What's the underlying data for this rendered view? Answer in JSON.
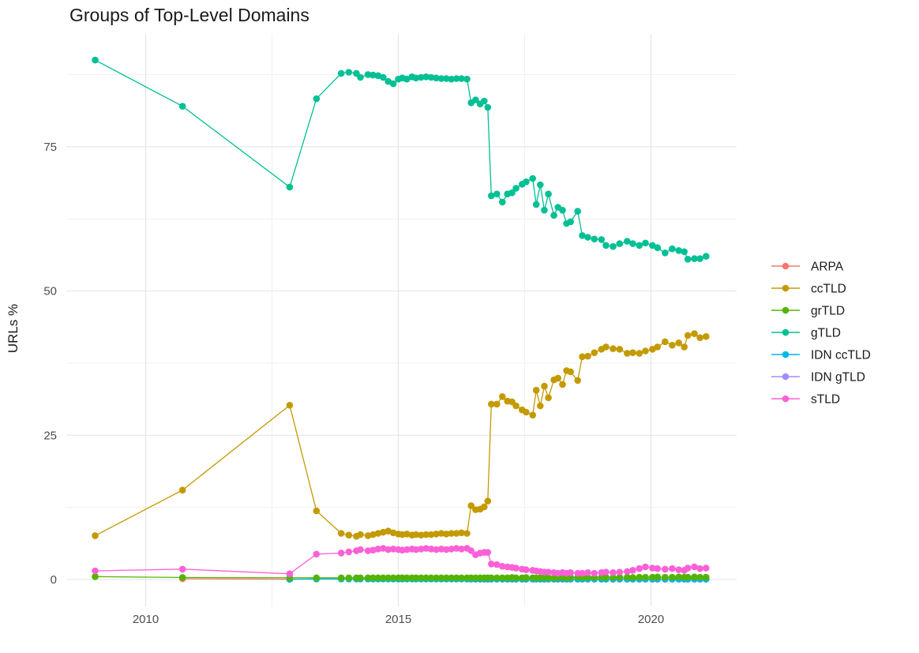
{
  "chart_data": {
    "type": "line",
    "title": "Groups of Top-Level Domains",
    "xlabel": "",
    "ylabel": "URLs %",
    "x_ticks": [
      2010,
      2015,
      2020
    ],
    "x_tick_labels": [
      "2010",
      "2015",
      "2020"
    ],
    "x_minor_ticks": [
      2012.5,
      2017.5
    ],
    "y_ticks": [
      0,
      25,
      50,
      75
    ],
    "y_tick_labels": [
      "0",
      "25",
      "50",
      "75"
    ],
    "y_minor_ticks": [
      12.5,
      37.5,
      62.5,
      87.5
    ],
    "xlim": [
      2008.4,
      2021.7
    ],
    "ylim": [
      -4.5,
      94.5
    ],
    "grid": true,
    "legend_position": "right",
    "grid_major_color": "#e3e3e3",
    "grid_minor_color": "#f0f0f0",
    "draw_order": [
      "ARPA",
      "IDN gTLD",
      "IDN ccTLD",
      "ccTLD",
      "grTLD",
      "gTLD",
      "sTLD"
    ],
    "series": [
      {
        "name": "ARPA",
        "color": "#F8766D",
        "x": [
          2010.73,
          2012.85
        ],
        "y": [
          0.15,
          0.05
        ]
      },
      {
        "name": "ccTLD",
        "color": "#C49A00",
        "x": [
          2009.0,
          2010.73,
          2012.85,
          2013.38,
          2013.87,
          2014.02,
          2014.17,
          2014.25,
          2014.4,
          2014.5,
          2014.6,
          2014.7,
          2014.8,
          2014.9,
          2015.0,
          2015.08,
          2015.17,
          2015.27,
          2015.35,
          2015.45,
          2015.55,
          2015.65,
          2015.75,
          2015.85,
          2015.95,
          2016.05,
          2016.15,
          2016.25,
          2016.36,
          2016.44,
          2016.53,
          2016.62,
          2016.7,
          2016.77,
          2016.84,
          2016.95,
          2017.06,
          2017.16,
          2017.25,
          2017.33,
          2017.45,
          2017.53,
          2017.66,
          2017.73,
          2017.81,
          2017.89,
          2017.97,
          2018.08,
          2018.16,
          2018.25,
          2018.33,
          2018.41,
          2018.55,
          2018.64,
          2018.75,
          2018.88,
          2019.02,
          2019.11,
          2019.25,
          2019.38,
          2019.53,
          2019.64,
          2019.77,
          2019.89,
          2020.03,
          2020.13,
          2020.28,
          2020.42,
          2020.55,
          2020.66,
          2020.73,
          2020.86,
          2020.97,
          2021.09
        ],
        "y": [
          7.6,
          15.5,
          30.2,
          11.9,
          8.0,
          7.7,
          7.5,
          7.8,
          7.6,
          7.8,
          8.0,
          8.2,
          8.4,
          8.1,
          7.9,
          7.8,
          7.9,
          7.7,
          7.8,
          7.7,
          7.8,
          7.8,
          7.9,
          8.0,
          7.9,
          8.0,
          8.0,
          8.1,
          8.0,
          12.8,
          12.1,
          12.2,
          12.6,
          13.6,
          30.4,
          30.4,
          31.7,
          30.9,
          30.8,
          30.1,
          29.4,
          29.0,
          28.5,
          32.8,
          30.1,
          33.5,
          31.5,
          34.6,
          34.9,
          33.8,
          36.2,
          36.0,
          34.5,
          38.6,
          38.7,
          39.3,
          39.9,
          40.3,
          40.0,
          39.9,
          39.2,
          39.3,
          39.2,
          39.6,
          39.9,
          40.3,
          41.2,
          40.6,
          41.0,
          40.3,
          42.3,
          42.6,
          41.9,
          42.1
        ]
      },
      {
        "name": "grTLD",
        "color": "#53B400",
        "x": [
          2009.0,
          2010.73,
          2012.85,
          2013.38,
          2013.87,
          2014.02,
          2014.17,
          2014.25,
          2014.4,
          2014.5,
          2014.6,
          2014.7,
          2014.8,
          2014.9,
          2015.0,
          2015.08,
          2015.17,
          2015.27,
          2015.35,
          2015.45,
          2015.55,
          2015.65,
          2015.75,
          2015.85,
          2015.95,
          2016.05,
          2016.15,
          2016.25,
          2016.36,
          2016.44,
          2016.53,
          2016.62,
          2016.7,
          2016.77,
          2016.84,
          2016.95,
          2017.06,
          2017.16,
          2017.25,
          2017.33,
          2017.45,
          2017.53,
          2017.66,
          2017.73,
          2017.81,
          2017.89,
          2017.97,
          2018.08,
          2018.16,
          2018.25,
          2018.33,
          2018.41,
          2018.55,
          2018.64,
          2018.75,
          2018.88,
          2019.02,
          2019.11,
          2019.25,
          2019.38,
          2019.53,
          2019.64,
          2019.77,
          2019.89,
          2020.03,
          2020.13,
          2020.28,
          2020.42,
          2020.55,
          2020.66,
          2020.73,
          2020.86,
          2020.97,
          2021.09
        ],
        "y": [
          0.5,
          0.35,
          0.3,
          0.3,
          0.3,
          0.3,
          0.3,
          0.3,
          0.3,
          0.3,
          0.3,
          0.3,
          0.3,
          0.3,
          0.3,
          0.3,
          0.3,
          0.3,
          0.3,
          0.3,
          0.3,
          0.3,
          0.3,
          0.3,
          0.3,
          0.3,
          0.3,
          0.3,
          0.3,
          0.3,
          0.3,
          0.3,
          0.3,
          0.3,
          0.3,
          0.3,
          0.3,
          0.3,
          0.35,
          0.3,
          0.3,
          0.35,
          0.3,
          0.3,
          0.3,
          0.35,
          0.3,
          0.3,
          0.35,
          0.35,
          0.3,
          0.35,
          0.4,
          0.35,
          0.4,
          0.35,
          0.4,
          0.4,
          0.35,
          0.4,
          0.4,
          0.35,
          0.4,
          0.4,
          0.4,
          0.45,
          0.4,
          0.4,
          0.45,
          0.4,
          0.4,
          0.45,
          0.4,
          0.4
        ]
      },
      {
        "name": "gTLD",
        "color": "#00C094",
        "x": [
          2009.0,
          2010.73,
          2012.85,
          2013.38,
          2013.87,
          2014.02,
          2014.17,
          2014.25,
          2014.4,
          2014.5,
          2014.6,
          2014.7,
          2014.8,
          2014.9,
          2015.0,
          2015.08,
          2015.17,
          2015.27,
          2015.35,
          2015.45,
          2015.55,
          2015.65,
          2015.75,
          2015.85,
          2015.95,
          2016.05,
          2016.15,
          2016.25,
          2016.36,
          2016.44,
          2016.53,
          2016.62,
          2016.7,
          2016.77,
          2016.84,
          2016.95,
          2017.06,
          2017.16,
          2017.25,
          2017.33,
          2017.45,
          2017.53,
          2017.66,
          2017.73,
          2017.81,
          2017.89,
          2017.97,
          2018.08,
          2018.16,
          2018.25,
          2018.33,
          2018.41,
          2018.55,
          2018.64,
          2018.75,
          2018.88,
          2019.02,
          2019.11,
          2019.25,
          2019.38,
          2019.53,
          2019.64,
          2019.77,
          2019.89,
          2020.03,
          2020.13,
          2020.28,
          2020.42,
          2020.55,
          2020.66,
          2020.73,
          2020.86,
          2020.97,
          2021.09
        ],
        "y": [
          90.0,
          82.0,
          68.0,
          83.3,
          87.7,
          87.9,
          87.7,
          87.0,
          87.5,
          87.4,
          87.3,
          87.0,
          86.3,
          85.9,
          86.7,
          86.9,
          86.7,
          87.1,
          86.9,
          87.0,
          87.1,
          87.0,
          86.9,
          86.8,
          86.8,
          86.7,
          86.8,
          86.8,
          86.7,
          82.6,
          83.1,
          82.4,
          82.9,
          81.8,
          66.5,
          66.8,
          65.4,
          66.8,
          67.0,
          67.8,
          68.5,
          68.9,
          69.5,
          65.0,
          68.4,
          64.0,
          66.8,
          63.1,
          64.5,
          64.0,
          61.7,
          62.0,
          63.8,
          59.6,
          59.3,
          59.0,
          58.9,
          57.9,
          57.7,
          58.2,
          58.6,
          58.2,
          57.9,
          58.3,
          57.9,
          57.5,
          56.6,
          57.3,
          57.0,
          56.8,
          55.5,
          55.6,
          55.6,
          56.0
        ]
      },
      {
        "name": "IDN ccTLD",
        "color": "#00B6EB",
        "x": [
          2012.85,
          2013.38,
          2013.87,
          2014.02,
          2014.17,
          2014.25,
          2014.4,
          2014.5,
          2014.6,
          2014.7,
          2014.8,
          2014.9,
          2015.0,
          2015.08,
          2015.17,
          2015.27,
          2015.35,
          2015.45,
          2015.55,
          2015.65,
          2015.75,
          2015.85,
          2015.95,
          2016.05,
          2016.15,
          2016.25,
          2016.36,
          2016.44,
          2016.53,
          2016.62,
          2016.7,
          2016.77,
          2016.84,
          2016.95,
          2017.06,
          2017.16,
          2017.25,
          2017.33,
          2017.45,
          2017.53,
          2017.66,
          2017.73,
          2017.81,
          2017.89,
          2017.97,
          2018.08,
          2018.16,
          2018.25,
          2018.33,
          2018.41,
          2018.55,
          2018.64,
          2018.75,
          2018.88,
          2019.02,
          2019.11,
          2019.25,
          2019.38,
          2019.53,
          2019.64,
          2019.77,
          2019.89,
          2020.03,
          2020.13,
          2020.28,
          2020.42,
          2020.55,
          2020.66,
          2020.73,
          2020.86,
          2020.97,
          2021.09
        ],
        "y": [
          0.05,
          0.1,
          0.1,
          0.1,
          0.1,
          0.1,
          0.1,
          0.1,
          0.1,
          0.1,
          0.1,
          0.1,
          0.1,
          0.1,
          0.1,
          0.1,
          0.1,
          0.1,
          0.1,
          0.1,
          0.1,
          0.1,
          0.1,
          0.1,
          0.1,
          0.1,
          0.1,
          0.1,
          0.1,
          0.1,
          0.1,
          0.1,
          0.1,
          0.1,
          0.1,
          0.1,
          0.1,
          0.1,
          0.1,
          0.1,
          0.1,
          0.1,
          0.1,
          0.1,
          0.1,
          0.1,
          0.1,
          0.1,
          0.1,
          0.1,
          0.1,
          0.1,
          0.1,
          0.1,
          0.1,
          0.1,
          0.1,
          0.1,
          0.1,
          0.1,
          0.1,
          0.1,
          0.1,
          0.1,
          0.1,
          0.1,
          0.1,
          0.1,
          0.1,
          0.1,
          0.1,
          0.1
        ]
      },
      {
        "name": "IDN gTLD",
        "color": "#A58AFF",
        "x": [
          2016.44,
          2016.53,
          2016.62,
          2016.7,
          2016.77,
          2016.84,
          2016.95,
          2017.06,
          2017.16,
          2017.25,
          2017.33,
          2017.45,
          2017.53,
          2017.66,
          2017.73,
          2017.81,
          2017.89,
          2017.97,
          2018.08,
          2018.16,
          2018.25,
          2018.33,
          2018.41,
          2018.55,
          2018.64,
          2018.75,
          2018.88,
          2019.02,
          2019.11,
          2019.25,
          2019.38,
          2019.53,
          2019.64,
          2019.77,
          2019.89,
          2020.03,
          2020.13,
          2020.28,
          2020.42,
          2020.55,
          2020.66,
          2020.73,
          2020.86,
          2020.97,
          2021.09
        ],
        "y": [
          0.05,
          0.05,
          0.05,
          0.05,
          0.05,
          0.05,
          0.05,
          0.05,
          0.05,
          0.05,
          0.05,
          0.05,
          0.05,
          0.05,
          0.05,
          0.05,
          0.05,
          0.05,
          0.05,
          0.05,
          0.05,
          0.05,
          0.05,
          0.05,
          0.05,
          0.05,
          0.05,
          0.05,
          0.05,
          0.05,
          0.05,
          0.05,
          0.05,
          0.05,
          0.05,
          0.05,
          0.05,
          0.05,
          0.05,
          0.05,
          0.05,
          0.05,
          0.05,
          0.05,
          0.05
        ]
      },
      {
        "name": "sTLD",
        "color": "#FB61D7",
        "x": [
          2009.0,
          2010.73,
          2012.85,
          2013.38,
          2013.87,
          2014.02,
          2014.17,
          2014.25,
          2014.4,
          2014.5,
          2014.6,
          2014.7,
          2014.8,
          2014.9,
          2015.0,
          2015.08,
          2015.17,
          2015.27,
          2015.35,
          2015.45,
          2015.55,
          2015.65,
          2015.75,
          2015.85,
          2015.95,
          2016.05,
          2016.15,
          2016.25,
          2016.36,
          2016.44,
          2016.53,
          2016.62,
          2016.7,
          2016.77,
          2016.84,
          2016.95,
          2017.06,
          2017.16,
          2017.25,
          2017.33,
          2017.45,
          2017.53,
          2017.66,
          2017.73,
          2017.81,
          2017.89,
          2017.97,
          2018.08,
          2018.16,
          2018.25,
          2018.33,
          2018.41,
          2018.55,
          2018.64,
          2018.75,
          2018.88,
          2019.02,
          2019.11,
          2019.25,
          2019.38,
          2019.53,
          2019.64,
          2019.77,
          2019.89,
          2020.03,
          2020.13,
          2020.28,
          2020.42,
          2020.55,
          2020.66,
          2020.73,
          2020.86,
          2020.97,
          2021.09
        ],
        "y": [
          1.5,
          1.8,
          1.0,
          4.4,
          4.6,
          4.8,
          5.0,
          5.2,
          5.0,
          5.1,
          5.3,
          5.4,
          5.2,
          5.3,
          5.2,
          5.1,
          5.2,
          5.3,
          5.2,
          5.3,
          5.4,
          5.3,
          5.2,
          5.3,
          5.2,
          5.3,
          5.4,
          5.3,
          5.4,
          5.0,
          4.3,
          4.6,
          4.7,
          4.7,
          2.7,
          2.6,
          2.3,
          2.2,
          2.1,
          2.0,
          1.8,
          1.7,
          1.6,
          1.5,
          1.4,
          1.3,
          1.3,
          1.2,
          1.1,
          1.2,
          1.1,
          1.2,
          1.1,
          1.1,
          1.2,
          1.1,
          1.2,
          1.3,
          1.2,
          1.3,
          1.4,
          1.6,
          1.9,
          2.2,
          2.0,
          1.9,
          1.8,
          1.9,
          1.7,
          1.6,
          2.0,
          2.2,
          1.9,
          2.0
        ]
      }
    ]
  }
}
